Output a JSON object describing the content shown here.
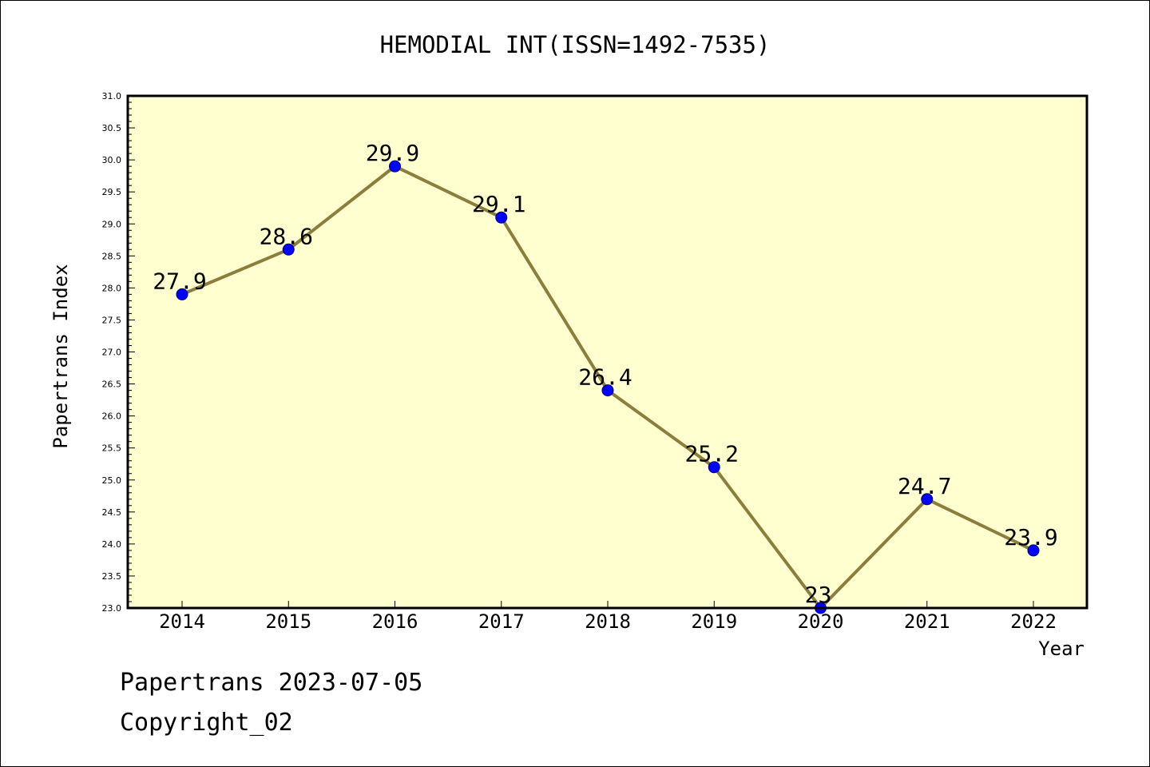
{
  "chart_data": {
    "type": "line",
    "title": "HEMODIAL INT(ISSN=1492-7535)",
    "xlabel": "Year",
    "ylabel": "Papertrans Index",
    "categories": [
      "2014",
      "2015",
      "2016",
      "2017",
      "2018",
      "2019",
      "2020",
      "2021",
      "2022"
    ],
    "values": [
      27.9,
      28.6,
      29.9,
      29.1,
      26.4,
      25.2,
      23,
      24.7,
      23.9
    ],
    "data_labels": [
      "27.9",
      "28.6",
      "29.9",
      "29.1",
      "26.4",
      "25.2",
      "23",
      "24.7",
      "23.9"
    ],
    "ylim": [
      23.0,
      31.0
    ],
    "yticks": [
      "23.0",
      "23.5",
      "24.0",
      "24.5",
      "25.0",
      "25.5",
      "26.0",
      "26.5",
      "27.0",
      "27.5",
      "28.0",
      "28.5",
      "29.0",
      "29.5",
      "30.0",
      "30.5",
      "31.0"
    ],
    "grid": false,
    "colors": {
      "plot_background": "#ffffd0",
      "line": "#8b7d3a",
      "marker": "#0000ff",
      "marker_edge": "#000080"
    }
  },
  "footer": {
    "line1": "Papertrans 2023-07-05",
    "line2": "Copyright_02"
  }
}
